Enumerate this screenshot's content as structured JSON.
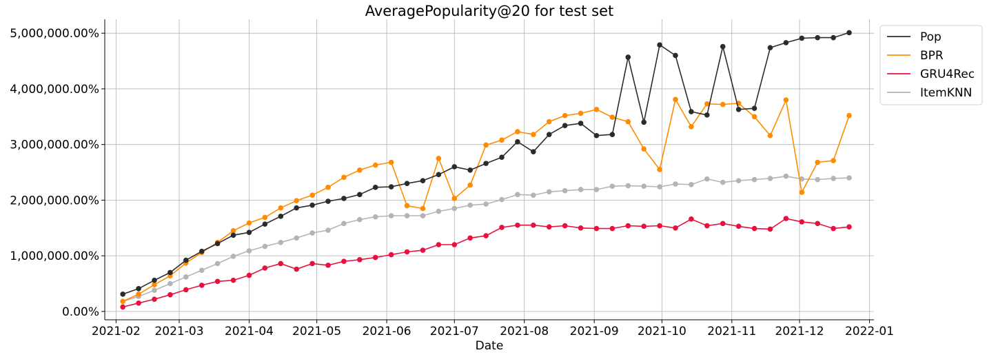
{
  "chart_data": {
    "type": "line",
    "title": "AveragePopularity@20 for test set",
    "xlabel": "Date",
    "ylabel": "",
    "x_tick_labels": [
      "2021-02",
      "2021-03",
      "2021-04",
      "2021-05",
      "2021-06",
      "2021-07",
      "2021-08",
      "2021-09",
      "2021-10",
      "2021-11",
      "2021-12",
      "2022-01"
    ],
    "y_tick_labels": [
      "0.00%",
      "1,000,000.00%",
      "2,000,000.00%",
      "3,000,000.00%",
      "4,000,000.00%",
      "5,000,000.00%"
    ],
    "y_ticks": [
      0,
      1000000,
      2000000,
      3000000,
      4000000,
      5000000
    ],
    "ylim": [
      -150000,
      5250000
    ],
    "xlim": [
      "2021-01-27",
      "2022-01-03"
    ],
    "grid": true,
    "legend_position": "outside-top-right",
    "x": [
      "2021-02-04",
      "2021-02-11",
      "2021-02-18",
      "2021-02-25",
      "2021-03-04",
      "2021-03-11",
      "2021-03-18",
      "2021-03-25",
      "2021-04-01",
      "2021-04-08",
      "2021-04-15",
      "2021-04-22",
      "2021-04-29",
      "2021-05-06",
      "2021-05-13",
      "2021-05-20",
      "2021-05-27",
      "2021-06-03",
      "2021-06-10",
      "2021-06-17",
      "2021-06-24",
      "2021-07-01",
      "2021-07-08",
      "2021-07-15",
      "2021-07-22",
      "2021-07-29",
      "2021-08-05",
      "2021-08-12",
      "2021-08-19",
      "2021-08-26",
      "2021-09-02",
      "2021-09-09",
      "2021-09-16",
      "2021-09-23",
      "2021-09-30",
      "2021-10-07",
      "2021-10-14",
      "2021-10-21",
      "2021-10-28",
      "2021-11-04",
      "2021-11-11",
      "2021-11-18",
      "2021-11-25",
      "2021-12-02",
      "2021-12-09",
      "2021-12-16",
      "2021-12-23"
    ],
    "series": [
      {
        "name": "Pop",
        "color": "#2b2b2b",
        "values": [
          310000,
          410000,
          560000,
          700000,
          920000,
          1080000,
          1220000,
          1370000,
          1420000,
          1570000,
          1710000,
          1860000,
          1910000,
          1980000,
          2030000,
          2100000,
          2230000,
          2240000,
          2300000,
          2350000,
          2460000,
          2600000,
          2540000,
          2660000,
          2770000,
          3050000,
          2870000,
          3180000,
          3340000,
          3380000,
          3160000,
          3180000,
          4570000,
          3400000,
          4790000,
          4600000,
          3590000,
          3530000,
          4760000,
          3630000,
          3650000,
          4740000,
          4830000,
          4910000,
          4920000,
          4920000,
          5010000
        ]
      },
      {
        "name": "BPR",
        "color": "#ff8c00",
        "values": [
          180000,
          310000,
          480000,
          640000,
          870000,
          1060000,
          1240000,
          1450000,
          1590000,
          1690000,
          1860000,
          1990000,
          2090000,
          2230000,
          2410000,
          2540000,
          2630000,
          2680000,
          1900000,
          1850000,
          2750000,
          2030000,
          2270000,
          2990000,
          3080000,
          3230000,
          3180000,
          3410000,
          3520000,
          3560000,
          3630000,
          3490000,
          3410000,
          2920000,
          2550000,
          3810000,
          3320000,
          3730000,
          3720000,
          3740000,
          3500000,
          3160000,
          3800000,
          2140000,
          2680000,
          2710000,
          3520000
        ]
      },
      {
        "name": "GRU4Rec",
        "color": "#e8103c",
        "values": [
          80000,
          150000,
          220000,
          300000,
          390000,
          470000,
          540000,
          560000,
          650000,
          780000,
          860000,
          760000,
          860000,
          830000,
          900000,
          930000,
          970000,
          1020000,
          1070000,
          1100000,
          1200000,
          1200000,
          1320000,
          1360000,
          1510000,
          1550000,
          1550000,
          1520000,
          1540000,
          1500000,
          1490000,
          1490000,
          1540000,
          1530000,
          1540000,
          1500000,
          1660000,
          1540000,
          1580000,
          1530000,
          1490000,
          1480000,
          1670000,
          1610000,
          1580000,
          1490000,
          1520000
        ]
      },
      {
        "name": "ItemKNN",
        "color": "#b4b4b4",
        "values": [
          180000,
          270000,
          380000,
          500000,
          620000,
          740000,
          860000,
          990000,
          1090000,
          1170000,
          1240000,
          1320000,
          1410000,
          1460000,
          1580000,
          1650000,
          1700000,
          1720000,
          1720000,
          1720000,
          1800000,
          1850000,
          1910000,
          1930000,
          2010000,
          2100000,
          2090000,
          2150000,
          2170000,
          2190000,
          2190000,
          2250000,
          2260000,
          2250000,
          2240000,
          2290000,
          2280000,
          2380000,
          2320000,
          2350000,
          2370000,
          2390000,
          2430000,
          2380000,
          2370000,
          2390000,
          2400000
        ]
      }
    ]
  }
}
